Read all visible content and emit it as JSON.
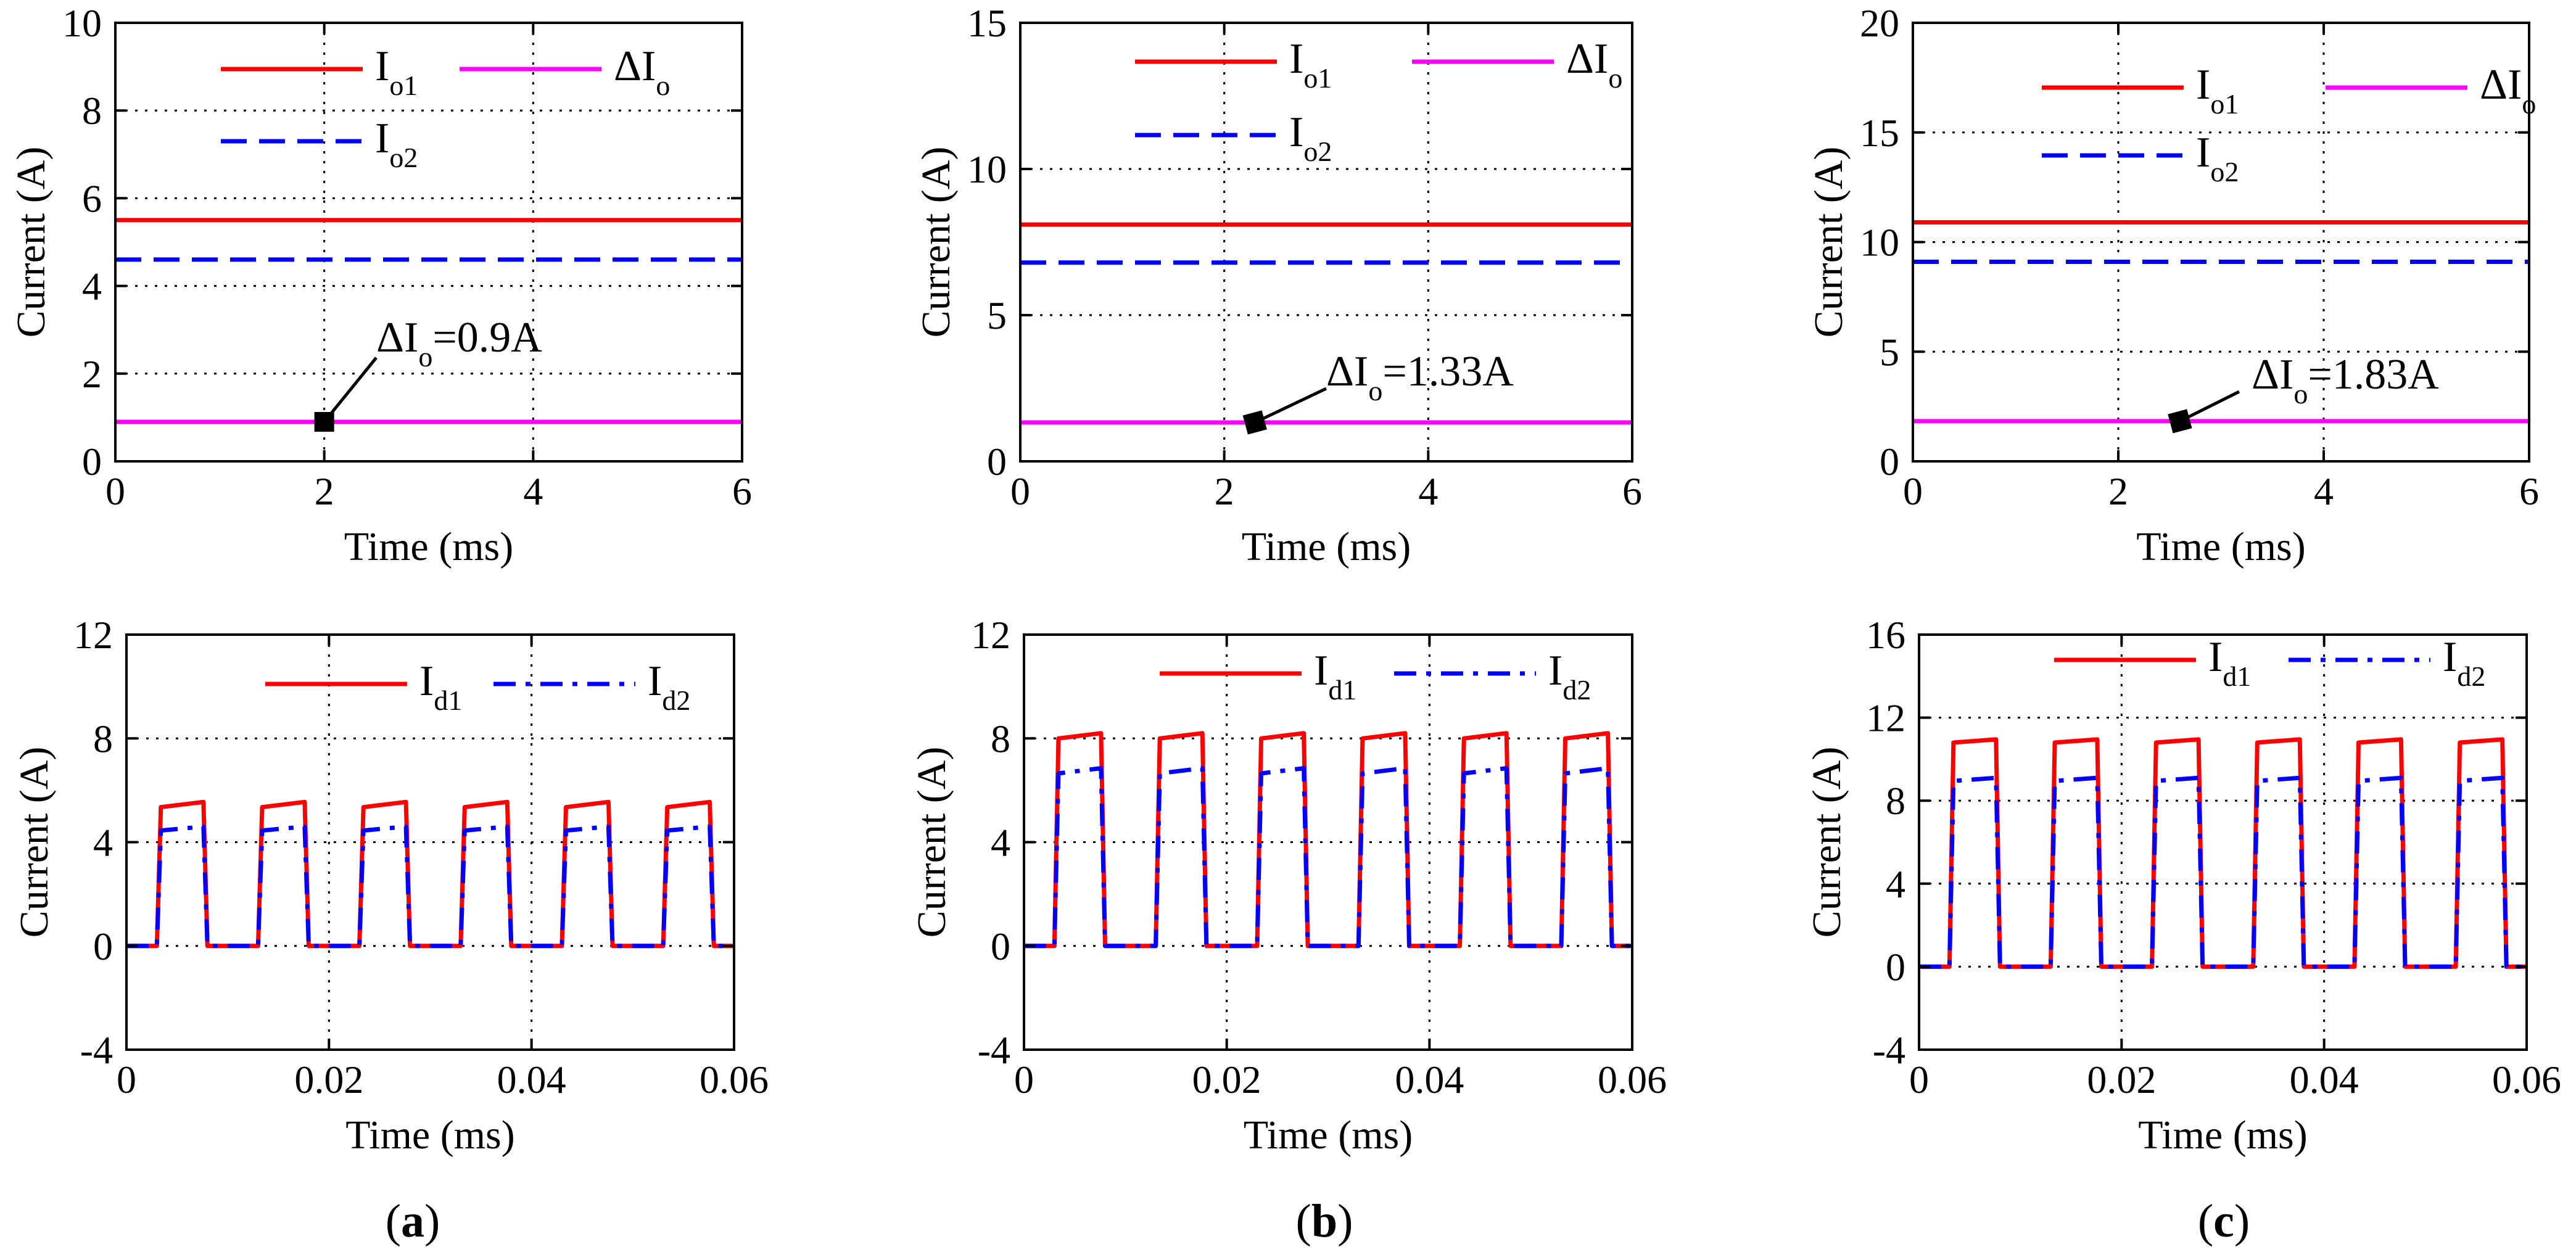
{
  "colors": {
    "red": "#ff0000",
    "blue": "#0000ff",
    "magenta": "#ff00ff",
    "grid": "#000000",
    "axis": "#000000"
  },
  "chart_data": [
    {
      "id": "a-top",
      "type": "line",
      "xlabel": "Time (ms)",
      "ylabel": "Current (A)",
      "xlim": [
        0,
        6
      ],
      "ylim": [
        0,
        10
      ],
      "xticks": [
        0,
        2,
        4,
        6
      ],
      "xtick_labels": [
        "0",
        "2",
        "4",
        "6"
      ],
      "yticks": [
        0,
        2,
        4,
        6,
        8,
        10
      ],
      "ytick_labels": [
        "0",
        "2",
        "4",
        "6",
        "8",
        "10"
      ],
      "grid": true,
      "legend_placement": "top",
      "series": [
        {
          "key": "io1",
          "name_main": "I",
          "name_sub": "o1",
          "style": "solid",
          "color": "#ff0000",
          "x": [
            0,
            6
          ],
          "y": [
            5.5,
            5.5
          ]
        },
        {
          "key": "dio",
          "name_main": "ΔI",
          "name_sub": "o",
          "style": "solid",
          "color": "#ff00ff",
          "x": [
            0,
            6
          ],
          "y": [
            0.9,
            0.9
          ]
        },
        {
          "key": "io2",
          "name_main": "I",
          "name_sub": "o2",
          "style": "dash",
          "color": "#0000ff",
          "x": [
            0,
            6
          ],
          "y": [
            4.6,
            4.6
          ]
        }
      ],
      "annotation": {
        "main": "ΔI",
        "sub": "o",
        "value_text": "=0.9A",
        "x": 2,
        "y": 0.9
      }
    },
    {
      "id": "b-top",
      "type": "line",
      "xlabel": "Time (ms)",
      "ylabel": "Current (A)",
      "xlim": [
        0,
        6
      ],
      "ylim": [
        0,
        15
      ],
      "xticks": [
        0,
        2,
        4,
        6
      ],
      "xtick_labels": [
        "0",
        "2",
        "4",
        "6"
      ],
      "yticks": [
        0,
        5,
        10,
        15
      ],
      "ytick_labels": [
        "0",
        "5",
        "10",
        "15"
      ],
      "grid": true,
      "legend_placement": "top",
      "series": [
        {
          "key": "io1",
          "name_main": "I",
          "name_sub": "o1",
          "style": "solid",
          "color": "#ff0000",
          "x": [
            0,
            6
          ],
          "y": [
            8.1,
            8.1
          ]
        },
        {
          "key": "dio",
          "name_main": "ΔI",
          "name_sub": "o",
          "style": "solid",
          "color": "#ff00ff",
          "x": [
            0,
            6
          ],
          "y": [
            1.33,
            1.33
          ]
        },
        {
          "key": "io2",
          "name_main": "I",
          "name_sub": "o2",
          "style": "dash",
          "color": "#0000ff",
          "x": [
            0,
            6
          ],
          "y": [
            6.8,
            6.8
          ]
        }
      ],
      "annotation": {
        "main": "ΔI",
        "sub": "o",
        "value_text": "=1.33A",
        "x": 2.3,
        "y": 1.33
      }
    },
    {
      "id": "c-top",
      "type": "line",
      "xlabel": "Time (ms)",
      "ylabel": "Current (A)",
      "xlim": [
        0,
        6
      ],
      "ylim": [
        0,
        20
      ],
      "xticks": [
        0,
        2,
        4,
        6
      ],
      "xtick_labels": [
        "0",
        "2",
        "4",
        "6"
      ],
      "yticks": [
        0,
        5,
        10,
        15,
        20
      ],
      "ytick_labels": [
        "0",
        "5",
        "10",
        "15",
        "20"
      ],
      "grid": true,
      "legend_placement": "top",
      "series": [
        {
          "key": "io1",
          "name_main": "I",
          "name_sub": "o1",
          "style": "solid",
          "color": "#ff0000",
          "x": [
            0,
            6
          ],
          "y": [
            10.9,
            10.9
          ]
        },
        {
          "key": "dio",
          "name_main": "ΔI",
          "name_sub": "o",
          "style": "solid",
          "color": "#ff00ff",
          "x": [
            0,
            6
          ],
          "y": [
            1.83,
            1.83
          ]
        },
        {
          "key": "io2",
          "name_main": "I",
          "name_sub": "o2",
          "style": "dash",
          "color": "#0000ff",
          "x": [
            0,
            6
          ],
          "y": [
            9.1,
            9.1
          ]
        }
      ],
      "annotation": {
        "main": "ΔI",
        "sub": "o",
        "value_text": "=1.83A",
        "x": 2.6,
        "y": 1.83
      }
    },
    {
      "id": "a-bottom",
      "type": "line",
      "xlabel": "Time (ms)",
      "ylabel": "Current (A)",
      "xlim": [
        0,
        0.06
      ],
      "ylim": [
        -4,
        12
      ],
      "xticks": [
        0,
        0.02,
        0.04,
        0.06
      ],
      "xtick_labels": [
        "0",
        "0.02",
        "0.04",
        "0.06"
      ],
      "yticks": [
        -4,
        0,
        4,
        8,
        12
      ],
      "ytick_labels": [
        "-4",
        "0",
        "4",
        "8",
        "12"
      ],
      "grid": true,
      "legend_placement": "top",
      "pulse": {
        "period": 0.01,
        "first_rise": 0.003,
        "rise": 0.0004,
        "fall": 0.0004,
        "on_time": 0.0046,
        "cycles": 6
      },
      "series": [
        {
          "key": "id1",
          "name_main": "I",
          "name_sub": "d1",
          "style": "solid",
          "color": "#ff0000",
          "high_start": 5.35,
          "high_end": 5.55
        },
        {
          "key": "id2",
          "name_main": "I",
          "name_sub": "d2",
          "style": "dashdot",
          "color": "#0000ff",
          "high_start": 4.45,
          "high_end": 4.6
        }
      ]
    },
    {
      "id": "b-bottom",
      "type": "line",
      "xlabel": "Time (ms)",
      "ylabel": "Current (A)",
      "xlim": [
        0,
        0.06
      ],
      "ylim": [
        -4,
        12
      ],
      "xticks": [
        0,
        0.02,
        0.04,
        0.06
      ],
      "xtick_labels": [
        "0",
        "0.02",
        "0.04",
        "0.06"
      ],
      "yticks": [
        -4,
        0,
        4,
        8,
        12
      ],
      "ytick_labels": [
        "-4",
        "0",
        "4",
        "8",
        "12"
      ],
      "grid": true,
      "legend_placement": "top",
      "pulse": {
        "period": 0.01,
        "first_rise": 0.003,
        "rise": 0.0004,
        "fall": 0.0004,
        "on_time": 0.0046,
        "cycles": 6
      },
      "series": [
        {
          "key": "id1",
          "name_main": "I",
          "name_sub": "d1",
          "style": "solid",
          "color": "#ff0000",
          "high_start": 8.0,
          "high_end": 8.2
        },
        {
          "key": "id2",
          "name_main": "I",
          "name_sub": "d2",
          "style": "dashdot",
          "color": "#0000ff",
          "high_start": 6.65,
          "high_end": 6.85
        }
      ]
    },
    {
      "id": "c-bottom",
      "type": "line",
      "xlabel": "Time (ms)",
      "ylabel": "Current (A)",
      "xlim": [
        0,
        0.06
      ],
      "ylim": [
        -4,
        16
      ],
      "xticks": [
        0,
        0.02,
        0.04,
        0.06
      ],
      "xtick_labels": [
        "0",
        "0.02",
        "0.04",
        "0.06"
      ],
      "yticks": [
        -4,
        0,
        4,
        8,
        12,
        16
      ],
      "ytick_labels": [
        "-4",
        "0",
        "4",
        "8",
        "12",
        "16"
      ],
      "grid": true,
      "legend_placement": "top",
      "pulse": {
        "period": 0.01,
        "first_rise": 0.003,
        "rise": 0.0004,
        "fall": 0.0004,
        "on_time": 0.0046,
        "cycles": 6
      },
      "series": [
        {
          "key": "id1",
          "name_main": "I",
          "name_sub": "d1",
          "style": "solid",
          "color": "#ff0000",
          "high_start": 10.8,
          "high_end": 10.95
        },
        {
          "key": "id2",
          "name_main": "I",
          "name_sub": "d2",
          "style": "dashdot",
          "color": "#0000ff",
          "high_start": 8.95,
          "high_end": 9.1
        }
      ]
    }
  ],
  "captions": [
    {
      "open": "(",
      "letter": "a",
      "close": ")"
    },
    {
      "open": "(",
      "letter": "b",
      "close": ")"
    },
    {
      "open": "(",
      "letter": "c",
      "close": ")"
    }
  ]
}
